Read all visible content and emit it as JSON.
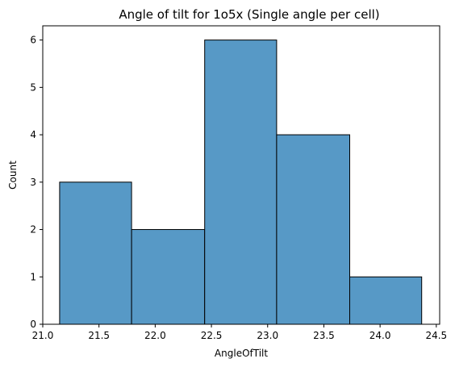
{
  "chart_data": {
    "type": "bar",
    "title": "Angle of tilt for 1o5x (Single angle per cell)",
    "xlabel": "AngleOfTilt",
    "ylabel": "Count",
    "bin_edges": [
      21.15,
      21.79,
      22.44,
      23.08,
      23.73,
      24.37
    ],
    "values": [
      3,
      2,
      6,
      4,
      1
    ],
    "xlim": [
      21.0,
      24.53
    ],
    "ylim": [
      0,
      6.3
    ],
    "xticks": [
      21.0,
      21.5,
      22.0,
      22.5,
      23.0,
      23.5,
      24.0,
      24.5
    ],
    "xtick_labels": [
      "21.0",
      "21.5",
      "22.0",
      "22.5",
      "23.0",
      "23.5",
      "24.0",
      "24.5"
    ],
    "yticks": [
      0,
      1,
      2,
      3,
      4,
      5,
      6
    ],
    "ytick_labels": [
      "0",
      "1",
      "2",
      "3",
      "4",
      "5",
      "6"
    ],
    "bar_color": "#5799c6",
    "edge_color": "#000000",
    "grid": false,
    "legend": "none"
  }
}
